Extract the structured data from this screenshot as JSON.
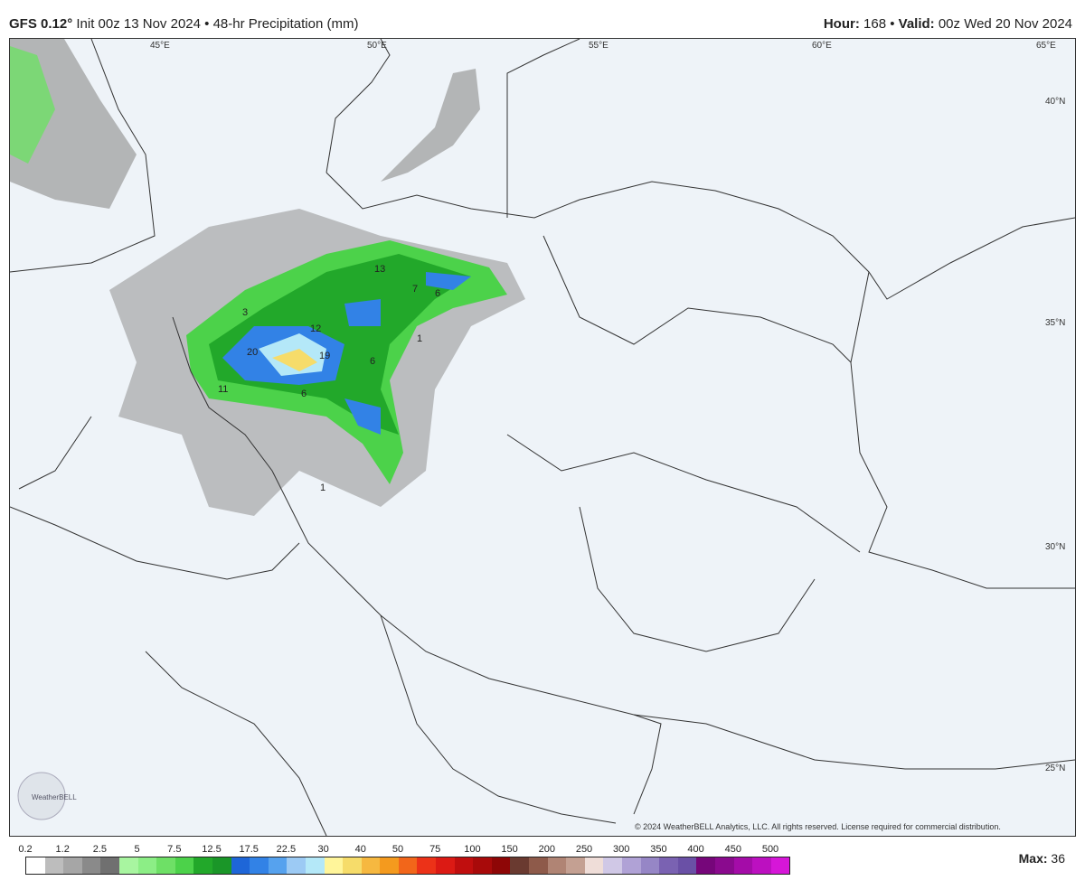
{
  "header": {
    "model": "GFS 0.12°",
    "init": "Init 00z 13 Nov 2024",
    "sep": "•",
    "product": "48-hr Precipitation (mm)",
    "hour_label": "Hour:",
    "hour": "168",
    "valid_label": "Valid:",
    "valid": "00z Wed 20 Nov 2024"
  },
  "lon_labels": [
    "45°E",
    "50°E",
    "55°E",
    "60°E",
    "65°E"
  ],
  "lat_labels": [
    "40°N",
    "35°N",
    "30°N",
    "25°N"
  ],
  "contour_labels": [
    "13",
    "7",
    "6",
    "3",
    "12",
    "20",
    "19",
    "6",
    "11",
    "6",
    "1",
    "1"
  ],
  "logo": "WeatherBELL",
  "copyright": "© 2024 WeatherBELL Analytics, LLC. All rights reserved. License required for commercial distribution.",
  "legend": {
    "ticks": [
      "0.2",
      "1.2",
      "2.5",
      "5",
      "7.5",
      "12.5",
      "17.5",
      "22.5",
      "30",
      "40",
      "50",
      "75",
      "100",
      "150",
      "200",
      "250",
      "300",
      "350",
      "400",
      "450",
      "500"
    ],
    "colors": [
      "#ffffff",
      "#bdbdbd",
      "#a6a6a6",
      "#8a8a8a",
      "#707070",
      "#a8f5a0",
      "#8cee86",
      "#6ee066",
      "#4cd24a",
      "#22a82a",
      "#1a9628",
      "#1e66d8",
      "#3282e6",
      "#56a2ee",
      "#9ccaf4",
      "#b4e8f8",
      "#fff59a",
      "#f6dc6a",
      "#f6b840",
      "#f49a1e",
      "#f2661a",
      "#ec3218",
      "#dc1a14",
      "#c00e0e",
      "#a80a0a",
      "#8e0606",
      "#6a3a30",
      "#8e5a4a",
      "#b08474",
      "#c4a092",
      "#efddd8",
      "#d0c8e6",
      "#b0a2d6",
      "#9686c6",
      "#7a62b2",
      "#6a50a6",
      "#76067a",
      "#8a0a8e",
      "#a40ca8",
      "#bc10c0",
      "#d616d8"
    ]
  },
  "max_label": "Max:",
  "max": "36"
}
